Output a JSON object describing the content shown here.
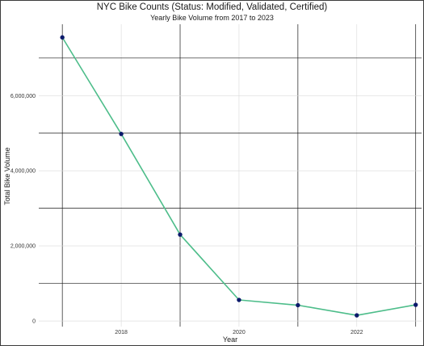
{
  "chart_data": {
    "type": "line",
    "title": "NYC Bike Counts (Status: Modified, Validated, Certified)",
    "subtitle": "Yearly Bike Volume from 2017 to 2023",
    "xlabel": "Year",
    "ylabel": "Total Bike Volume",
    "x": [
      2017,
      2018,
      2019,
      2020,
      2021,
      2022,
      2023
    ],
    "series": [
      {
        "values": [
          7550000,
          4980000,
          2300000,
          560000,
          420000,
          150000,
          430000
        ]
      }
    ],
    "xlim": [
      2016.6,
      2023.1
    ],
    "ylim": [
      -150000,
      7900000
    ],
    "x_ticks": [
      2018,
      2020,
      2022
    ],
    "x_tick_labels": [
      "2018",
      "2020",
      "2022"
    ],
    "y_ticks": [
      0,
      2000000,
      4000000,
      6000000
    ],
    "y_tick_labels": [
      "0",
      "2,000,000",
      "4,000,000",
      "6,000,000"
    ],
    "grid": true,
    "colors": {
      "line": "#4dbd8a",
      "points": "#0c1a6b",
      "major_grid": "#1a1a1a",
      "minor_grid": "#d9d9d9"
    }
  }
}
